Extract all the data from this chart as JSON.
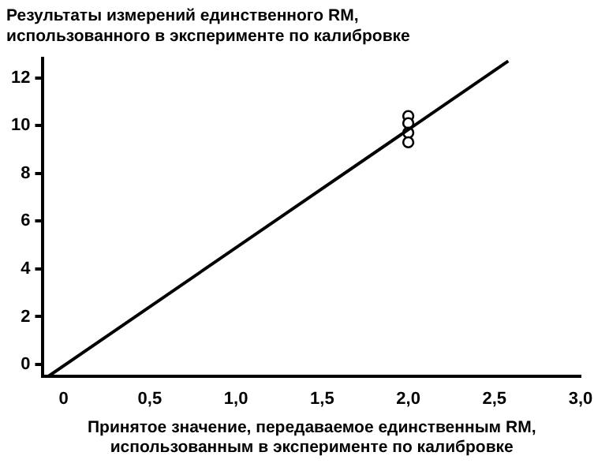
{
  "chart_data": {
    "type": "scatter",
    "ylabel": "Результаты измерений единственного RM,\nиспользованного в эксперименте по калибровке",
    "xlabel": "Принятое значение, передаваемое единственным RM,\nиспользованным в эксперименте по калибровке",
    "series": [
      {
        "type": "line",
        "color": "#000000",
        "x": [
          -0.09,
          2.58
        ],
        "values": [
          -0.5,
          12.7
        ],
        "marker": "none"
      },
      {
        "color": "#000000",
        "x": [
          2.0,
          2.0,
          2.0,
          2.0
        ],
        "values": [
          10.4,
          10.1,
          9.7,
          9.3
        ],
        "marker": "circle"
      }
    ],
    "xlim": [
      -0.12,
      3.0
    ],
    "ylim": [
      -0.5,
      12.8
    ],
    "xticks": [
      0,
      {
        "value": 0.5,
        "label": "0,5"
      },
      {
        "value": 1,
        "label": "1,0"
      },
      {
        "value": 1.5,
        "label": "1,5"
      },
      {
        "value": 2,
        "label": "2,0"
      },
      {
        "value": 2.5,
        "label": "2,5"
      },
      {
        "value": 3,
        "label": "3,0"
      }
    ],
    "yticks": [
      0,
      2,
      4,
      6,
      8,
      10,
      12
    ],
    "grid": false,
    "legend": false
  }
}
